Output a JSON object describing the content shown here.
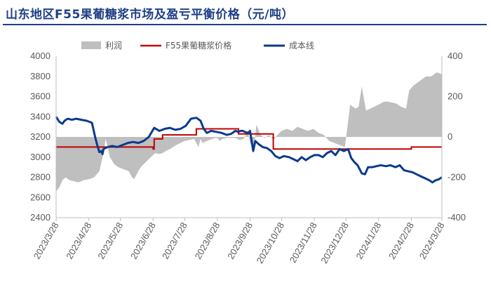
{
  "title": "山东地区F55果葡糖浆市场及盈亏平衡价格（元/吨）",
  "colors": {
    "title": "#1f3f86",
    "profit": "#bfbfbf",
    "price": "#c00000",
    "cost": "#0b3a8c"
  },
  "chart_data": {
    "type": "line",
    "title": "山东地区F55果葡糖浆市场及盈亏平衡价格（元/吨）",
    "x_range": [
      "2023-03-28",
      "2024-03-28"
    ],
    "x_ticks": [
      "2023/3/28",
      "2023/4/28",
      "2023/5/28",
      "2023/6/28",
      "2023/7/28",
      "2023/8/28",
      "2023/9/28",
      "2023/10/28",
      "2023/11/28",
      "2023/12/28",
      "2024/1/28",
      "2024/2/28",
      "2024/3/28"
    ],
    "y_left": {
      "ticks": [
        "2400",
        "2600",
        "2800",
        "3000",
        "3200",
        "3400",
        "3600",
        "3800",
        "4000"
      ],
      "lim": [
        2400,
        4000
      ]
    },
    "y_right": {
      "ticks": [
        "-400",
        "-200",
        "0",
        "200",
        "400"
      ],
      "lim": [
        -400,
        400
      ]
    },
    "legend": [
      "利润",
      "F55果葡糖浆价格",
      "成本线"
    ],
    "series": [
      {
        "name": "利润",
        "type": "area",
        "axis": "right",
        "x": [
          "2023-03-28",
          "2023-03-31",
          "2023-04-03",
          "2023-04-06",
          "2023-04-10",
          "2023-04-14",
          "2023-04-18",
          "2023-04-23",
          "2023-04-28",
          "2023-05-03",
          "2023-05-08",
          "2023-05-12",
          "2023-05-14",
          "2023-05-15",
          "2023-05-18",
          "2023-05-22",
          "2023-05-26",
          "2023-05-31",
          "2023-06-05",
          "2023-06-08",
          "2023-06-10",
          "2023-06-12",
          "2023-06-15",
          "2023-06-18",
          "2023-06-22",
          "2023-06-26",
          "2023-06-30",
          "2023-07-04",
          "2023-07-07",
          "2023-07-10",
          "2023-07-14",
          "2023-07-17",
          "2023-07-20",
          "2023-07-24",
          "2023-07-28",
          "2023-08-02",
          "2023-08-06",
          "2023-08-10",
          "2023-08-12",
          "2023-08-14",
          "2023-08-18",
          "2023-08-23",
          "2023-08-26",
          "2023-08-28",
          "2023-08-30",
          "2023-09-02",
          "2023-09-06",
          "2023-09-10",
          "2023-09-14",
          "2023-09-18",
          "2023-09-22",
          "2023-09-26",
          "2023-09-28",
          "2023-09-30",
          "2023-10-02",
          "2023-10-04",
          "2023-10-08",
          "2023-10-12",
          "2023-10-16",
          "2023-10-20",
          "2023-10-24",
          "2023-10-28",
          "2023-11-02",
          "2023-11-07",
          "2023-11-12",
          "2023-11-17",
          "2023-11-22",
          "2023-11-27",
          "2023-12-02",
          "2023-12-07",
          "2023-12-12",
          "2023-12-17",
          "2023-12-22",
          "2023-12-27",
          "2024-01-01",
          "2024-01-06",
          "2024-01-09",
          "2024-01-12",
          "2024-01-16",
          "2024-01-20",
          "2024-01-24",
          "2024-01-28",
          "2024-02-02",
          "2024-02-06",
          "2024-02-10",
          "2024-02-14",
          "2024-02-18",
          "2024-02-23",
          "2024-02-26",
          "2024-03-01",
          "2024-03-05",
          "2024-03-09",
          "2024-03-13",
          "2024-03-18",
          "2024-03-23",
          "2024-03-28"
        ],
        "values": [
          -270,
          -250,
          -215,
          -200,
          -215,
          -220,
          -225,
          -215,
          -210,
          -200,
          -170,
          -80,
          -10,
          -30,
          -100,
          -135,
          -150,
          -160,
          -170,
          -200,
          -210,
          -190,
          -160,
          -140,
          -120,
          -100,
          -80,
          -85,
          -80,
          -70,
          -60,
          -50,
          -40,
          -30,
          -20,
          -15,
          -10,
          -50,
          -10,
          -30,
          -20,
          -10,
          -5,
          -5,
          -20,
          -10,
          -5,
          -5,
          -5,
          -15,
          -10,
          30,
          -30,
          -50,
          -40,
          60,
          10,
          -5,
          10,
          -15,
          10,
          30,
          40,
          30,
          50,
          40,
          30,
          40,
          20,
          10,
          -20,
          -30,
          -40,
          -50,
          160,
          140,
          150,
          250,
          130,
          140,
          150,
          160,
          175,
          175,
          170,
          165,
          150,
          140,
          230,
          255,
          270,
          285,
          300,
          300,
          320,
          310
        ]
      },
      {
        "name": "F55果葡糖浆价格",
        "type": "step",
        "axis": "left",
        "x": [
          "2023-03-28",
          "2023-05-08",
          "2023-06-28",
          "2023-06-29",
          "2023-07-07",
          "2023-07-28",
          "2023-08-08",
          "2023-09-05",
          "2023-09-17",
          "2023-10-20",
          "2023-11-12",
          "2023-12-08",
          "2023-12-25",
          "2024-02-28",
          "2024-03-28"
        ],
        "values": [
          3100,
          3100,
          3080,
          3180,
          3220,
          3220,
          3280,
          3280,
          3230,
          3080,
          3080,
          3080,
          3080,
          3100,
          3100
        ]
      },
      {
        "name": "成本线",
        "type": "line",
        "axis": "left",
        "x": [
          "2023-03-28",
          "2023-03-31",
          "2023-04-03",
          "2023-04-05",
          "2023-04-08",
          "2023-04-12",
          "2023-04-16",
          "2023-04-21",
          "2023-04-26",
          "2023-05-01",
          "2023-05-04",
          "2023-05-06",
          "2023-05-08",
          "2023-05-10",
          "2023-05-11",
          "2023-05-12",
          "2023-05-14",
          "2023-05-16",
          "2023-05-20",
          "2023-05-25",
          "2023-05-30",
          "2023-06-04",
          "2023-06-09",
          "2023-06-14",
          "2023-06-19",
          "2023-06-24",
          "2023-06-29",
          "2023-07-04",
          "2023-07-09",
          "2023-07-14",
          "2023-07-19",
          "2023-07-24",
          "2023-07-29",
          "2023-08-03",
          "2023-08-08",
          "2023-08-12",
          "2023-08-15",
          "2023-08-18",
          "2023-08-22",
          "2023-08-27",
          "2023-09-01",
          "2023-09-06",
          "2023-09-10",
          "2023-09-14",
          "2023-09-17",
          "2023-09-19",
          "2023-09-21",
          "2023-09-23",
          "2023-09-26",
          "2023-09-28",
          "2023-10-01",
          "2023-10-03",
          "2023-10-06",
          "2023-10-10",
          "2023-10-14",
          "2023-10-18",
          "2023-10-22",
          "2023-10-26",
          "2023-10-30",
          "2023-11-04",
          "2023-11-08",
          "2023-11-12",
          "2023-11-16",
          "2023-11-20",
          "2023-11-24",
          "2023-11-28",
          "2023-12-02",
          "2023-12-06",
          "2023-12-10",
          "2023-12-14",
          "2023-12-18",
          "2023-12-22",
          "2023-12-26",
          "2023-12-30",
          "2024-01-02",
          "2024-01-05",
          "2024-01-08",
          "2024-01-12",
          "2024-01-15",
          "2024-01-18",
          "2024-01-22",
          "2024-01-26",
          "2024-01-30",
          "2024-02-04",
          "2024-02-08",
          "2024-02-13",
          "2024-02-17",
          "2024-02-21",
          "2024-02-25",
          "2024-02-29",
          "2024-03-04",
          "2024-03-08",
          "2024-03-12",
          "2024-03-16",
          "2024-03-19",
          "2024-03-22",
          "2024-03-25",
          "2024-03-28"
        ],
        "values": [
          3400,
          3350,
          3330,
          3360,
          3380,
          3370,
          3380,
          3370,
          3360,
          3340,
          3200,
          3120,
          3050,
          3060,
          3030,
          3080,
          3090,
          3100,
          3110,
          3100,
          3120,
          3140,
          3150,
          3140,
          3160,
          3200,
          3290,
          3260,
          3280,
          3290,
          3270,
          3280,
          3310,
          3380,
          3390,
          3360,
          3280,
          3240,
          3260,
          3250,
          3240,
          3220,
          3230,
          3260,
          3250,
          3260,
          3260,
          3250,
          3240,
          3260,
          3060,
          3160,
          3130,
          3100,
          3090,
          3060,
          3010,
          2990,
          3010,
          3000,
          2980,
          2960,
          3000,
          2970,
          3000,
          3020,
          3020,
          3000,
          3040,
          3060,
          3020,
          3080,
          3060,
          3080,
          2990,
          2950,
          2920,
          2840,
          2830,
          2900,
          2900,
          2910,
          2920,
          2910,
          2920,
          2900,
          2920,
          2870,
          2860,
          2850,
          2830,
          2810,
          2790,
          2770,
          2750,
          2770,
          2780,
          2800
        ]
      }
    ],
    "grid": false,
    "legend_placement": "top-center"
  }
}
